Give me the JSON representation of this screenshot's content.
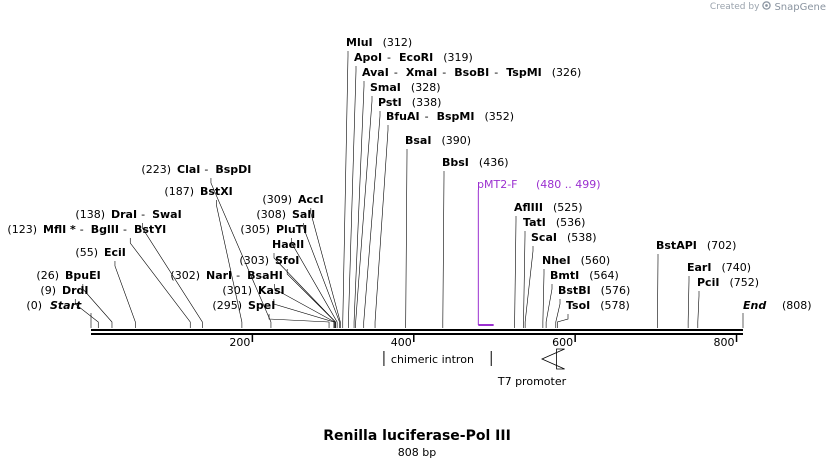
{
  "sequence": {
    "name": "Renilla luciferase-Pol  III",
    "length_label": "808 bp",
    "length": 808
  },
  "credit": {
    "prefix": "Created by",
    "brand": "SnapGene"
  },
  "colors": {
    "primer": "#9b30d0",
    "line": "#000000",
    "credit": "#9aa3ad"
  },
  "axis": {
    "ticks": [
      200,
      400,
      600,
      800
    ]
  },
  "start": {
    "name": "Start",
    "pos": 0,
    "pos_label": "(0)"
  },
  "end": {
    "name": "End",
    "pos": 808,
    "pos_label": "(808)"
  },
  "sites": [
    {
      "names": [
        "DrdI"
      ],
      "pos": 9,
      "pos_label": "(9)"
    },
    {
      "names": [
        "BpuEI"
      ],
      "pos": 26,
      "pos_label": "(26)"
    },
    {
      "names": [
        "EciI"
      ],
      "pos": 55,
      "pos_label": "(55)"
    },
    {
      "names": [
        "MflI *",
        "BglII",
        "BstYI"
      ],
      "pos": 123,
      "pos_label": "(123)"
    },
    {
      "names": [
        "DraI",
        "SwaI"
      ],
      "pos": 138,
      "pos_label": "(138)"
    },
    {
      "names": [
        "BstXI"
      ],
      "pos": 187,
      "pos_label": "(187)"
    },
    {
      "names": [
        "ClaI",
        "BspDI"
      ],
      "pos": 223,
      "pos_label": "(223)"
    },
    {
      "names": [
        "SpeI"
      ],
      "pos": 295,
      "pos_label": "(295)"
    },
    {
      "names": [
        "KasI"
      ],
      "pos": 301,
      "pos_label": "(301)"
    },
    {
      "names": [
        "NarI",
        "BsaHI"
      ],
      "pos": 302,
      "pos_label": "(302)"
    },
    {
      "names": [
        "SfoI"
      ],
      "pos": 303,
      "pos_label": "(303)"
    },
    {
      "names": [
        "HaeII"
      ],
      "pos": 303,
      "pos_label": ""
    },
    {
      "names": [
        "PluTI"
      ],
      "pos": 305,
      "pos_label": "(305)"
    },
    {
      "names": [
        "SalI"
      ],
      "pos": 308,
      "pos_label": "(308)"
    },
    {
      "names": [
        "AccI"
      ],
      "pos": 309,
      "pos_label": "(309)"
    },
    {
      "names": [
        "MluI"
      ],
      "pos": 312,
      "pos_label": "(312)"
    },
    {
      "names": [
        "ApoI",
        "EcoRI"
      ],
      "pos": 319,
      "pos_label": "(319)"
    },
    {
      "names": [
        "AvaI",
        "XmaI",
        "BsoBI",
        "TspMI"
      ],
      "pos": 326,
      "pos_label": "(326)"
    },
    {
      "names": [
        "SmaI"
      ],
      "pos": 328,
      "pos_label": "(328)"
    },
    {
      "names": [
        "PstI"
      ],
      "pos": 338,
      "pos_label": "(338)"
    },
    {
      "names": [
        "BfuAI",
        "BspMI"
      ],
      "pos": 352,
      "pos_label": "(352)"
    },
    {
      "names": [
        "BsaI"
      ],
      "pos": 390,
      "pos_label": "(390)"
    },
    {
      "names": [
        "BbsI"
      ],
      "pos": 436,
      "pos_label": "(436)"
    },
    {
      "names": [
        "AflIII"
      ],
      "pos": 525,
      "pos_label": "(525)"
    },
    {
      "names": [
        "TatI"
      ],
      "pos": 536,
      "pos_label": "(536)"
    },
    {
      "names": [
        "ScaI"
      ],
      "pos": 538,
      "pos_label": "(538)"
    },
    {
      "names": [
        "NheI"
      ],
      "pos": 560,
      "pos_label": "(560)"
    },
    {
      "names": [
        "BmtI"
      ],
      "pos": 564,
      "pos_label": "(564)"
    },
    {
      "names": [
        "BstBI"
      ],
      "pos": 576,
      "pos_label": "(576)"
    },
    {
      "names": [
        "TsoI"
      ],
      "pos": 578,
      "pos_label": "(578)"
    },
    {
      "names": [
        "BstAPI"
      ],
      "pos": 702,
      "pos_label": "(702)"
    },
    {
      "names": [
        "EarI"
      ],
      "pos": 740,
      "pos_label": "(740)"
    },
    {
      "names": [
        "PciI"
      ],
      "pos": 752,
      "pos_label": "(752)"
    }
  ],
  "primer": {
    "name": "pMT2-F",
    "range_label": "(480 .. 499)",
    "start": 480,
    "end": 499
  },
  "features": [
    {
      "name": "chimeric intron",
      "start": 363,
      "end": 496,
      "type": "intron"
    },
    {
      "name": "T7 promoter",
      "start": 577,
      "end": 595,
      "type": "promoter"
    }
  ]
}
